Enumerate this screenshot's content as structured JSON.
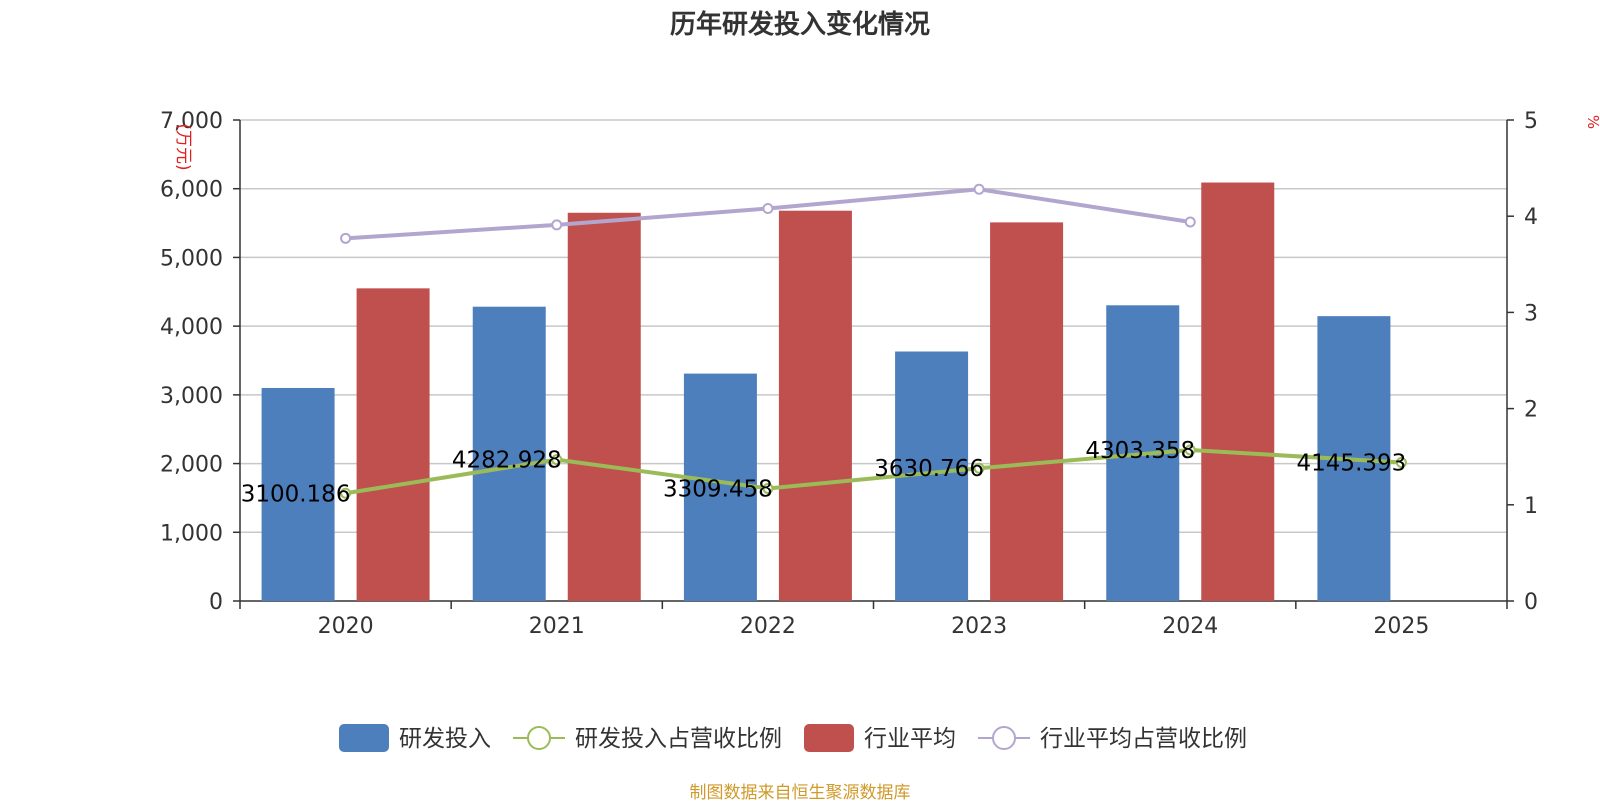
{
  "chart_data": {
    "type": "bar",
    "title": "历年研发投入变化情况",
    "categories": [
      "2020",
      "2021",
      "2022",
      "2023",
      "2024",
      "2025"
    ],
    "y_left": {
      "label": "(万元)",
      "ylim": [
        0,
        7000
      ],
      "ticks": [
        "0",
        "1,000",
        "2,000",
        "3,000",
        "4,000",
        "5,000",
        "6,000",
        "7,000"
      ]
    },
    "y_right": {
      "label": "%",
      "ylim": [
        0,
        5
      ],
      "ticks": [
        "0",
        "1",
        "2",
        "3",
        "4",
        "5"
      ]
    },
    "grid": true,
    "legend_position": "bottom",
    "series": [
      {
        "name": "研发投入",
        "type": "bar",
        "axis": "left",
        "color": "#4e7fbd",
        "values": [
          3100.186,
          4282.928,
          3309.458,
          3630.766,
          4303.358,
          4145.393
        ]
      },
      {
        "name": "研发投入占营收比例",
        "type": "line",
        "axis": "right",
        "color": "#9bbb59",
        "values": [
          1.12,
          1.47,
          1.17,
          1.38,
          1.57,
          1.44
        ]
      },
      {
        "name": "行业平均",
        "type": "bar",
        "axis": "left",
        "color": "#c0504d",
        "values": [
          4550,
          5650,
          5680,
          5510,
          6090,
          null
        ]
      },
      {
        "name": "行业平均占营收比例",
        "type": "line",
        "axis": "right",
        "color": "#b3a6ce",
        "values": [
          3.77,
          3.91,
          4.08,
          4.28,
          3.94,
          null
        ]
      }
    ],
    "data_labels": [
      "3100.186",
      "4282.928",
      "3309.458",
      "3630.766",
      "4303.358",
      "4145.393"
    ]
  },
  "footer": {
    "source": "制图数据来自恒生聚源数据库"
  }
}
